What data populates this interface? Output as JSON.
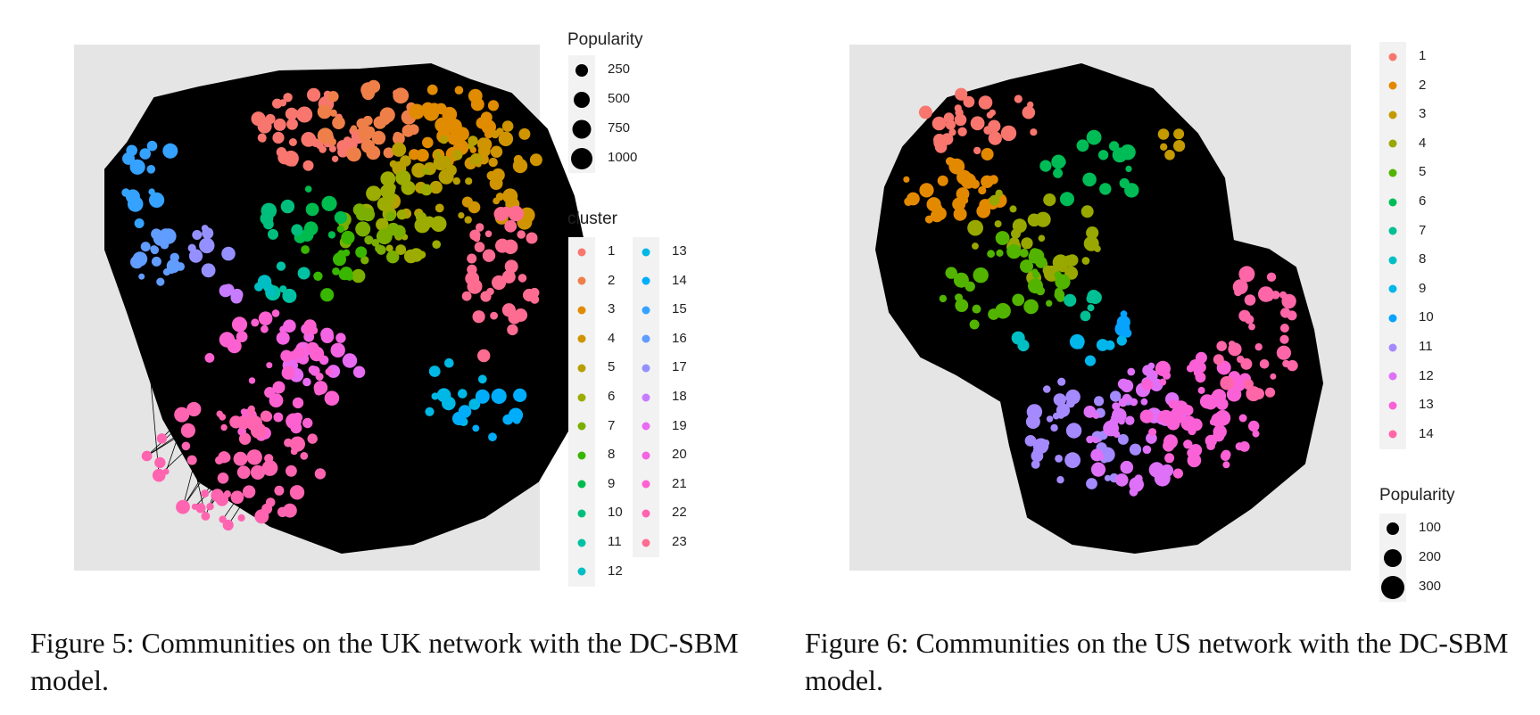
{
  "figures": [
    {
      "id": "fig5",
      "caption": "Figure 5: Communities on the UK network with the DC-SBM model.",
      "size_legend": {
        "title": "Popularity",
        "labels": [
          "250",
          "500",
          "750",
          "1000"
        ]
      },
      "cluster_legend": {
        "title": "cluster",
        "labels": [
          "1",
          "2",
          "3",
          "4",
          "5",
          "6",
          "7",
          "8",
          "9",
          "10",
          "11",
          "12",
          "13",
          "14",
          "15",
          "16",
          "17",
          "18",
          "19",
          "20",
          "21",
          "22",
          "23"
        ]
      }
    },
    {
      "id": "fig6",
      "caption": "Figure 6: Communities on the US network with the DC-SBM model.",
      "size_legend": {
        "title": "Popularity",
        "labels": [
          "100",
          "200",
          "300"
        ]
      },
      "cluster_legend": {
        "title": "",
        "labels": [
          "1",
          "2",
          "3",
          "4",
          "5",
          "6",
          "7",
          "8",
          "9",
          "10",
          "11",
          "12",
          "13",
          "14"
        ]
      }
    }
  ],
  "colors": {
    "panel_background": "#e5e5e5",
    "edges": "#000000",
    "uk_clusters": [
      "#f8766d",
      "#ef7f49",
      "#e08b00",
      "#cf9400",
      "#b79f00",
      "#9cac00",
      "#7aaf00",
      "#39b600",
      "#00bb4e",
      "#00bf7d",
      "#00c1a3",
      "#00bfc4",
      "#00b8e5",
      "#00adfa",
      "#35a2ff",
      "#619cff",
      "#9590ff",
      "#c77cff",
      "#e76bf3",
      "#f564e3",
      "#fd61d1",
      "#ff64b0",
      "#ff6c91"
    ],
    "us_clusters": [
      "#f8766d",
      "#e38900",
      "#c49a00",
      "#99a800",
      "#53b400",
      "#00bc56",
      "#00c094",
      "#00bfc4",
      "#00b6eb",
      "#06a4ff",
      "#a58aff",
      "#df70f8",
      "#fb61d7",
      "#ff66a8"
    ]
  },
  "chart_data": [
    {
      "type": "scatter",
      "title": "",
      "description": "Network graph of UK communities (DC-SBM)",
      "series_by_cluster": [
        {
          "name": "1",
          "count": 40
        },
        {
          "name": "2",
          "count": 35
        },
        {
          "name": "3",
          "count": 30
        },
        {
          "name": "4",
          "count": 30
        },
        {
          "name": "5",
          "count": 28
        },
        {
          "name": "6",
          "count": 28
        },
        {
          "name": "7",
          "count": 18
        },
        {
          "name": "8",
          "count": 14
        },
        {
          "name": "9",
          "count": 10
        },
        {
          "name": "10",
          "count": 6
        },
        {
          "name": "11",
          "count": 6
        },
        {
          "name": "12",
          "count": 4
        },
        {
          "name": "13",
          "count": 10
        },
        {
          "name": "14",
          "count": 10
        },
        {
          "name": "15",
          "count": 14
        },
        {
          "name": "16",
          "count": 18
        },
        {
          "name": "17",
          "count": 8
        },
        {
          "name": "18",
          "count": 4
        },
        {
          "name": "19",
          "count": 8
        },
        {
          "name": "20",
          "count": 16
        },
        {
          "name": "21",
          "count": 44
        },
        {
          "name": "22",
          "count": 60
        },
        {
          "name": "23",
          "count": 36
        }
      ]
    },
    {
      "type": "scatter",
      "title": "",
      "description": "Network graph of US communities (DC-SBM)",
      "series_by_cluster": [
        {
          "name": "1",
          "count": 30
        },
        {
          "name": "2",
          "count": 30
        },
        {
          "name": "3",
          "count": 5
        },
        {
          "name": "4",
          "count": 30
        },
        {
          "name": "5",
          "count": 34
        },
        {
          "name": "6",
          "count": 16
        },
        {
          "name": "7",
          "count": 6
        },
        {
          "name": "8",
          "count": 2
        },
        {
          "name": "9",
          "count": 6
        },
        {
          "name": "10",
          "count": 4
        },
        {
          "name": "11",
          "count": 40
        },
        {
          "name": "12",
          "count": 44
        },
        {
          "name": "13",
          "count": 60
        },
        {
          "name": "14",
          "count": 34
        }
      ]
    }
  ]
}
